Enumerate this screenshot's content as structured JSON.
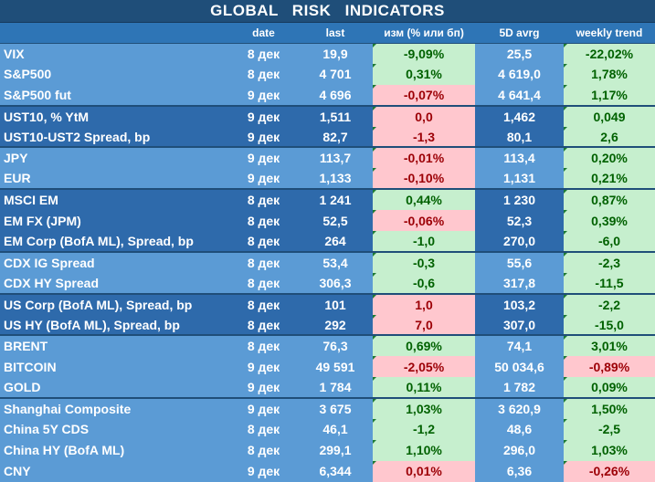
{
  "title": "GLOBAL   RISK   INDICATORS",
  "headers": {
    "name": "",
    "date": "date",
    "last": "last",
    "chg": "изм (% или бп)",
    "avg": "5D avrg",
    "wk": "weekly trend"
  },
  "rows": [
    {
      "name": "VIX",
      "date": "8 дек",
      "last": "19,9",
      "chg": "-9,09%",
      "avg": "25,5",
      "wk": "-22,02%",
      "chg_state": "pos",
      "wk_state": "pos"
    },
    {
      "name": "S&P500",
      "date": "8 дек",
      "last": "4 701",
      "chg": "0,31%",
      "avg": "4 619,0",
      "wk": "1,78%",
      "chg_state": "pos",
      "wk_state": "pos"
    },
    {
      "name": "S&P500 fut",
      "date": "9 дек",
      "last": "4 696",
      "chg": "-0,07%",
      "avg": "4 641,4",
      "wk": "1,17%",
      "chg_state": "neg",
      "wk_state": "pos"
    },
    {
      "name": "UST10, % YtM",
      "date": "9 дек",
      "last": "1,511",
      "chg": "0,0",
      "avg": "1,462",
      "wk": "0,049",
      "chg_state": "neg",
      "wk_state": "pos"
    },
    {
      "name": "UST10-UST2 Spread, bp",
      "date": "9 дек",
      "last": "82,7",
      "chg": "-1,3",
      "avg": "80,1",
      "wk": "2,6",
      "chg_state": "neg",
      "wk_state": "pos"
    },
    {
      "name": "JPY",
      "date": "9 дек",
      "last": "113,7",
      "chg": "-0,01%",
      "avg": "113,4",
      "wk": "0,20%",
      "chg_state": "neg",
      "wk_state": "pos"
    },
    {
      "name": "EUR",
      "date": "9 дек",
      "last": "1,133",
      "chg": "-0,10%",
      "avg": "1,131",
      "wk": "0,21%",
      "chg_state": "neg",
      "wk_state": "pos"
    },
    {
      "name": "MSCI EM",
      "date": "8 дек",
      "last": "1 241",
      "chg": "0,44%",
      "avg": "1 230",
      "wk": "0,87%",
      "chg_state": "pos",
      "wk_state": "pos"
    },
    {
      "name": "EM FX (JPM)",
      "date": "8 дек",
      "last": "52,5",
      "chg": "-0,06%",
      "avg": "52,3",
      "wk": "0,39%",
      "chg_state": "neg",
      "wk_state": "pos"
    },
    {
      "name": "EM Corp (BofA ML), Spread, bp",
      "date": "8 дек",
      "last": "264",
      "chg": "-1,0",
      "avg": "270,0",
      "wk": "-6,0",
      "chg_state": "pos",
      "wk_state": "pos"
    },
    {
      "name": "CDX IG Spread",
      "date": "8 дек",
      "last": "53,4",
      "chg": "-0,3",
      "avg": "55,6",
      "wk": "-2,3",
      "chg_state": "pos",
      "wk_state": "pos"
    },
    {
      "name": "CDX HY Spread",
      "date": "8 дек",
      "last": "306,3",
      "chg": "-0,6",
      "avg": "317,8",
      "wk": "-11,5",
      "chg_state": "pos",
      "wk_state": "pos"
    },
    {
      "name": "US Corp (BofA ML), Spread, bp",
      "date": "8 дек",
      "last": "101",
      "chg": "1,0",
      "avg": "103,2",
      "wk": "-2,2",
      "chg_state": "neg",
      "wk_state": "pos"
    },
    {
      "name": "US HY (BofA ML), Spread, bp",
      "date": "8 дек",
      "last": "292",
      "chg": "7,0",
      "avg": "307,0",
      "wk": "-15,0",
      "chg_state": "neg",
      "wk_state": "pos"
    },
    {
      "name": "BRENT",
      "date": "8 дек",
      "last": "76,3",
      "chg": "0,69%",
      "avg": "74,1",
      "wk": "3,01%",
      "chg_state": "pos",
      "wk_state": "pos"
    },
    {
      "name": "BITCOIN",
      "date": "9 дек",
      "last": "49 591",
      "chg": "-2,05%",
      "avg": "50 034,6",
      "wk": "-0,89%",
      "chg_state": "neg",
      "wk_state": "neg"
    },
    {
      "name": "GOLD",
      "date": "9 дек",
      "last": "1 784",
      "chg": "0,11%",
      "avg": "1 782",
      "wk": "0,09%",
      "chg_state": "pos",
      "wk_state": "pos"
    },
    {
      "name": "Shanghai Composite",
      "date": "9 дек",
      "last": "3 675",
      "chg": "1,03%",
      "avg": "3 620,9",
      "wk": "1,50%",
      "chg_state": "pos",
      "wk_state": "pos"
    },
    {
      "name": "China 5Y CDS",
      "date": "8 дек",
      "last": "46,1",
      "chg": "-1,2",
      "avg": "48,6",
      "wk": "-2,5",
      "chg_state": "pos",
      "wk_state": "pos"
    },
    {
      "name": "China HY (BofA ML)",
      "date": "8 дек",
      "last": "299,1",
      "chg": "1,10%",
      "avg": "296,0",
      "wk": "1,03%",
      "chg_state": "pos",
      "wk_state": "pos"
    },
    {
      "name": "CNY",
      "date": "9 дек",
      "last": "6,344",
      "chg": "0,01%",
      "avg": "6,36",
      "wk": "-0,26%",
      "chg_state": "neg",
      "wk_state": "neg"
    }
  ],
  "groups": [
    {
      "tone": "light",
      "rows": 3
    },
    {
      "tone": "dark",
      "rows": 2
    },
    {
      "tone": "light",
      "rows": 2
    },
    {
      "tone": "dark",
      "rows": 3
    },
    {
      "tone": "light",
      "rows": 2
    },
    {
      "tone": "dark",
      "rows": 2
    },
    {
      "tone": "light",
      "rows": 3
    },
    {
      "tone": "light",
      "rows": 4
    }
  ]
}
